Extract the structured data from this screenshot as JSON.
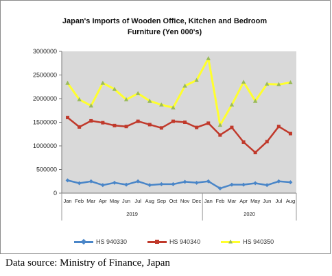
{
  "chart_data": {
    "type": "line",
    "title": "Japan's Imports of  Wooden  Office, Kitchen and Bedroom",
    "subtitle": "Furniture (Yen 000's)",
    "categories": [
      "Jan",
      "Feb",
      "Mar",
      "Apr",
      "May",
      "Jun",
      "Jul",
      "Aug",
      "Sep",
      "Oct",
      "Nov",
      "Dec",
      "Jan",
      "Feb",
      "Mar",
      "Apr",
      "May",
      "Jun",
      "Jul",
      "Aug"
    ],
    "groups": [
      {
        "label": "2019",
        "count": 12
      },
      {
        "label": "2020",
        "count": 8
      }
    ],
    "ylim": [
      0,
      3000000
    ],
    "yticks": [
      "0",
      "500000",
      "1000000",
      "1500000",
      "2000000",
      "2500000",
      "3000000"
    ],
    "grid": false,
    "legend_position": "bottom",
    "series": [
      {
        "name": "HS 940330",
        "color": "#4a86c8",
        "marker": "diamond",
        "values": [
          270000,
          210000,
          250000,
          170000,
          220000,
          180000,
          250000,
          170000,
          190000,
          190000,
          240000,
          220000,
          250000,
          100000,
          180000,
          180000,
          210000,
          170000,
          250000,
          230000
        ]
      },
      {
        "name": "HS 940340",
        "color": "#c0392b",
        "marker": "square",
        "values": [
          1600000,
          1400000,
          1530000,
          1490000,
          1430000,
          1410000,
          1520000,
          1450000,
          1380000,
          1520000,
          1500000,
          1390000,
          1480000,
          1230000,
          1390000,
          1080000,
          860000,
          1090000,
          1410000,
          1260000
        ]
      },
      {
        "name": "HS 940350",
        "color": "#ffff2e",
        "marker": "triangle",
        "marker_color": "#9bbb59",
        "values": [
          2330000,
          1980000,
          1850000,
          2330000,
          2200000,
          1980000,
          2110000,
          1950000,
          1870000,
          1810000,
          2270000,
          2390000,
          2850000,
          1440000,
          1870000,
          2350000,
          1950000,
          2310000,
          2300000,
          2340000
        ]
      }
    ]
  },
  "caption": "Data source: Ministry of Finance, Japan"
}
